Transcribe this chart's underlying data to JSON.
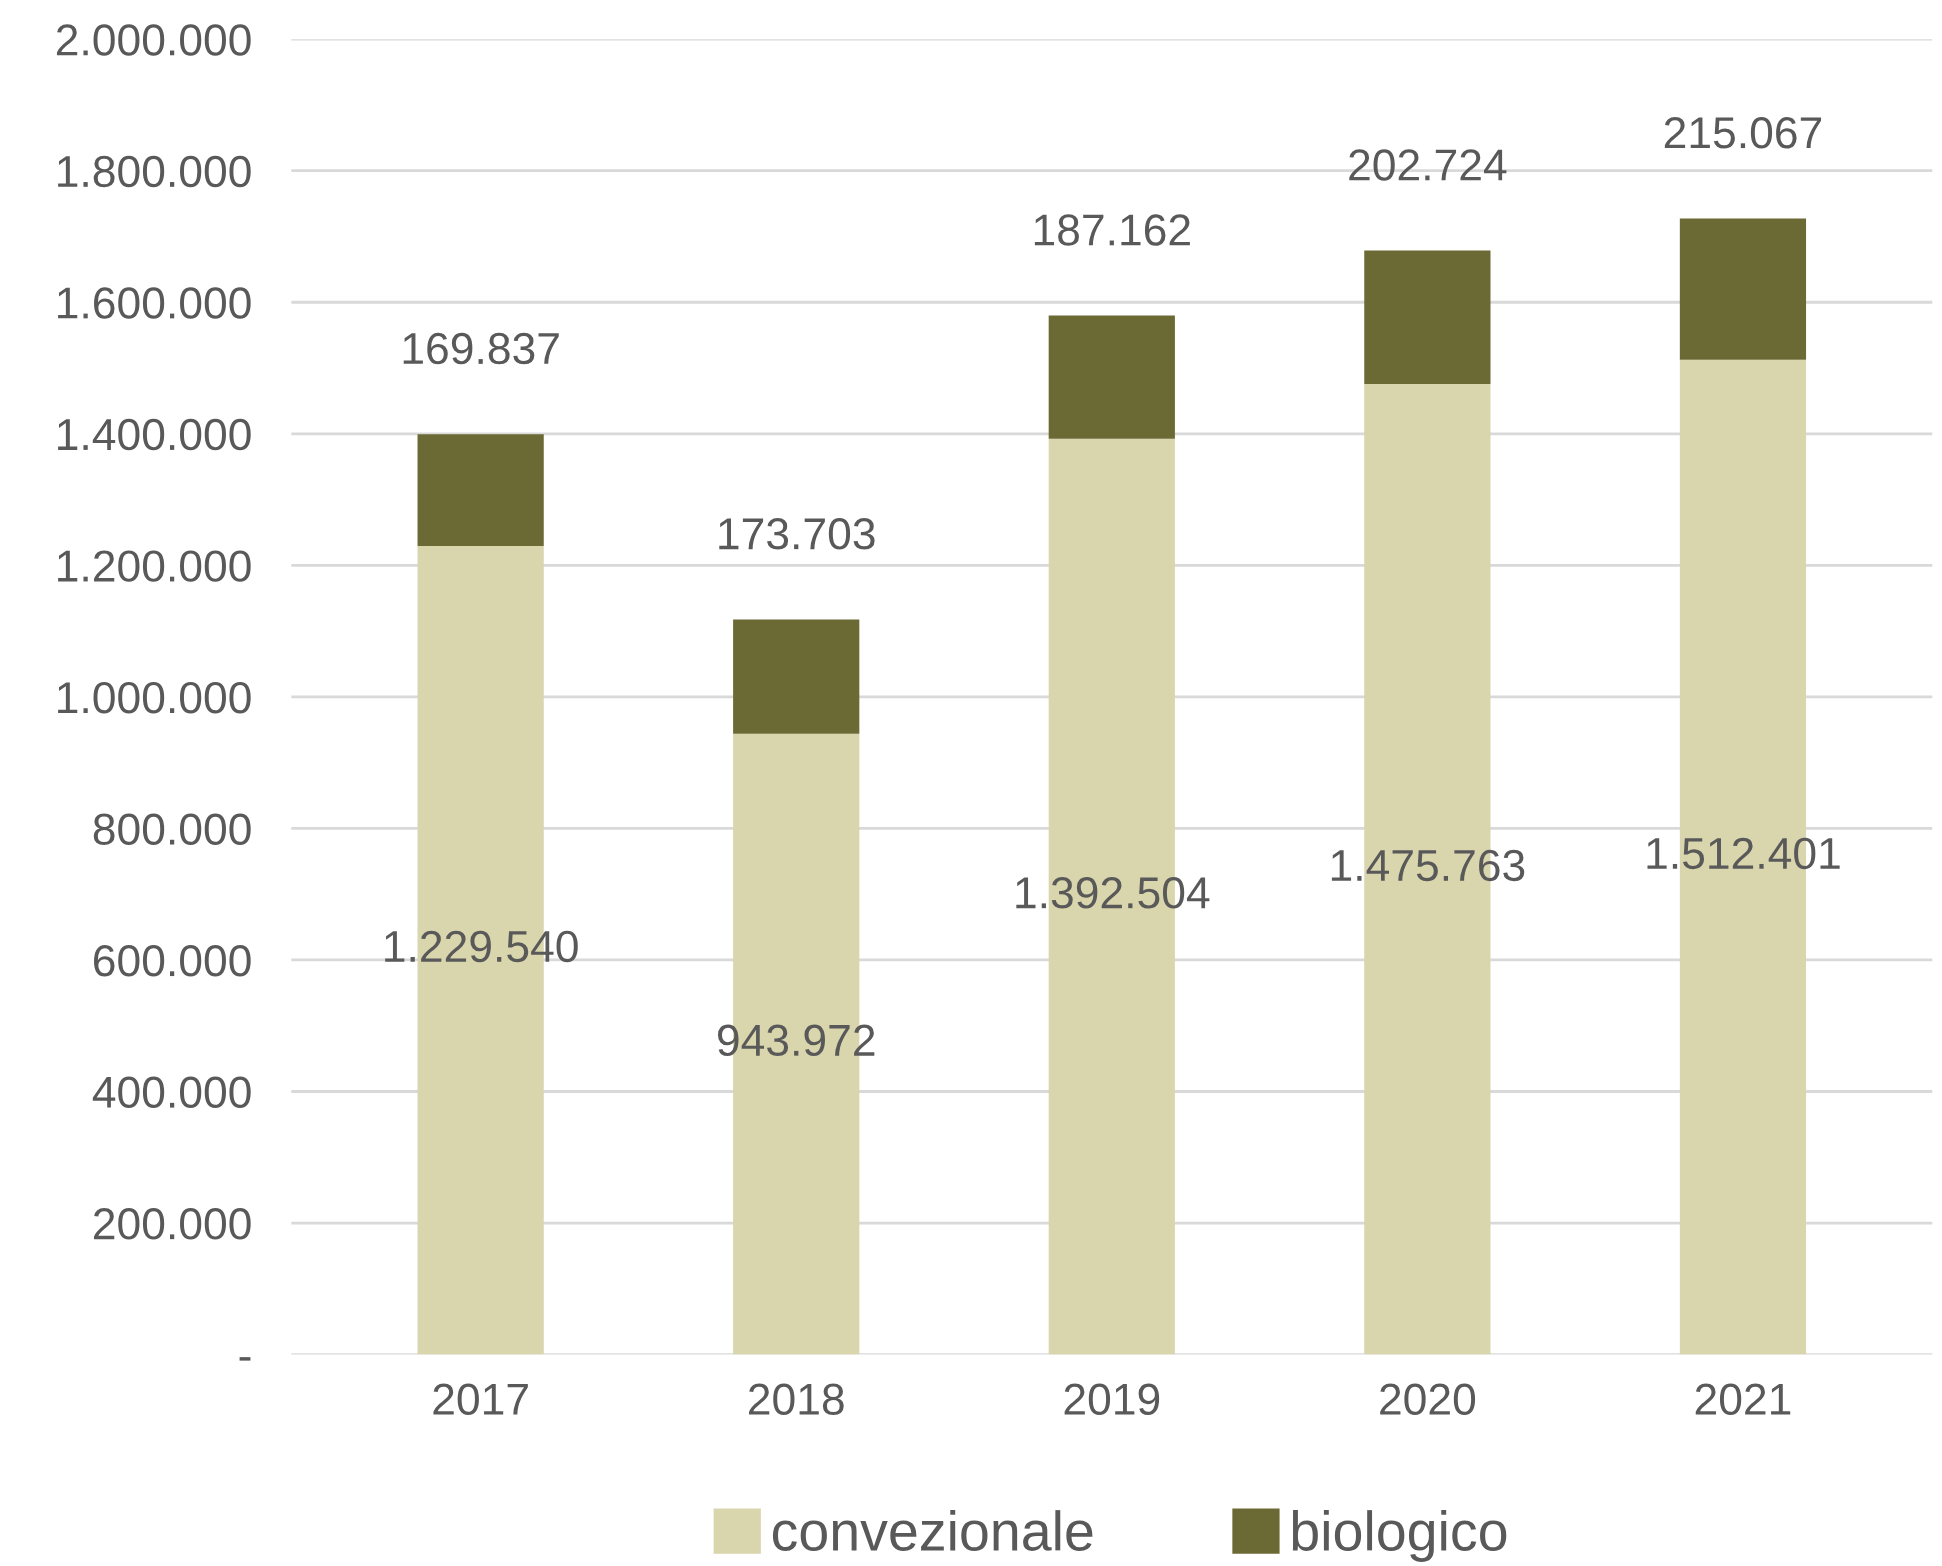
{
  "chart_data": {
    "type": "bar",
    "stacked": true,
    "categories": [
      "2017",
      "2018",
      "2019",
      "2020",
      "2021"
    ],
    "series": [
      {
        "name": "convezionale",
        "color": "#d9d5ac",
        "values": [
          1229540,
          943972,
          1392504,
          1475763,
          1512401
        ],
        "value_labels": [
          "1.229.540",
          "943.972",
          "1.392.504",
          "1.475.763",
          "1.512.401"
        ]
      },
      {
        "name": "biologico",
        "color": "#6b6934",
        "values": [
          169837,
          173703,
          187162,
          202724,
          215067
        ],
        "value_labels": [
          "169.837",
          "173.703",
          "187.162",
          "202.724",
          "215.067"
        ]
      }
    ],
    "ylim": [
      0,
      2000000
    ],
    "yticks": [
      {
        "value": 0,
        "label": "-"
      },
      {
        "value": 200000,
        "label": "200.000"
      },
      {
        "value": 400000,
        "label": "400.000"
      },
      {
        "value": 600000,
        "label": "600.000"
      },
      {
        "value": 800000,
        "label": "800.000"
      },
      {
        "value": 1000000,
        "label": "1.000.000"
      },
      {
        "value": 1200000,
        "label": "1.200.000"
      },
      {
        "value": 1400000,
        "label": "1.400.000"
      },
      {
        "value": 1600000,
        "label": "1.600.000"
      },
      {
        "value": 1800000,
        "label": "1.800.000"
      },
      {
        "value": 2000000,
        "label": "2.000.000"
      }
    ],
    "grid": "y",
    "legend": "bottom"
  }
}
